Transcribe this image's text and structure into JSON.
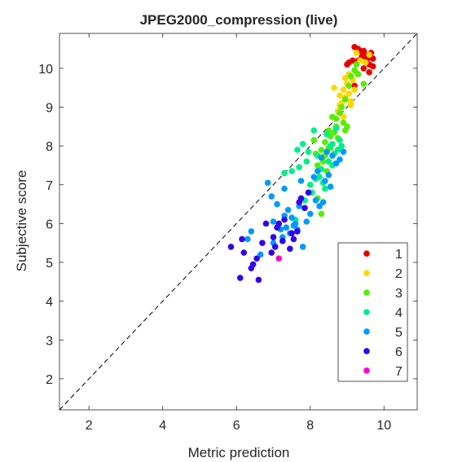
{
  "chart_data": {
    "type": "scatter",
    "title": "JPEG2000_compression (live)",
    "xlabel": "Metric prediction",
    "ylabel": "Subjective score",
    "xlim": [
      1.2,
      10.9
    ],
    "ylim": [
      1.2,
      10.9
    ],
    "xticks": [
      2,
      4,
      6,
      8,
      10
    ],
    "yticks": [
      2,
      3,
      4,
      5,
      6,
      7,
      8,
      9,
      10
    ],
    "reference_line": "y = x (dashed)",
    "grid": false,
    "legend_position": "bottom-right",
    "series": [
      {
        "name": "1",
        "color": "#e60000",
        "points": [
          [
            9.2,
            10.55
          ],
          [
            9.3,
            10.2
          ],
          [
            9.35,
            10.45
          ],
          [
            9.45,
            10.0
          ],
          [
            9.5,
            10.35
          ],
          [
            9.55,
            10.25
          ],
          [
            9.6,
            10.1
          ],
          [
            9.65,
            10.4
          ],
          [
            9.7,
            10.05
          ],
          [
            9.4,
            10.3
          ],
          [
            9.05,
            10.15
          ],
          [
            9.15,
            10.2
          ],
          [
            9.0,
            10.1
          ],
          [
            9.6,
            9.9
          ],
          [
            9.2,
            9.55
          ],
          [
            9.3,
            10.5
          ],
          [
            9.7,
            10.25
          ],
          [
            9.45,
            10.45
          ]
        ]
      },
      {
        "name": "2",
        "color": "#ffd700",
        "points": [
          [
            8.65,
            9.5
          ],
          [
            8.8,
            9.3
          ],
          [
            8.85,
            9.1
          ],
          [
            8.9,
            9.45
          ],
          [
            8.95,
            9.25
          ],
          [
            9.0,
            9.6
          ],
          [
            9.05,
            9.35
          ],
          [
            9.1,
            9.15
          ],
          [
            9.15,
            9.7
          ],
          [
            9.2,
            9.45
          ],
          [
            9.25,
            10.4
          ],
          [
            9.35,
            10.2
          ],
          [
            9.5,
            10.15
          ],
          [
            9.6,
            10.35
          ],
          [
            9.05,
            9.85
          ],
          [
            8.75,
            8.9
          ],
          [
            8.9,
            8.75
          ],
          [
            9.1,
            9.05
          ],
          [
            9.25,
            9.9
          ],
          [
            8.95,
            9.75
          ],
          [
            8.8,
            9.05
          ]
        ]
      },
      {
        "name": "3",
        "color": "#55ee00",
        "points": [
          [
            8.1,
            8.15
          ],
          [
            8.15,
            7.8
          ],
          [
            8.2,
            7.5
          ],
          [
            8.3,
            7.9
          ],
          [
            8.35,
            7.6
          ],
          [
            8.4,
            7.75
          ],
          [
            8.45,
            7.35
          ],
          [
            8.5,
            8.4
          ],
          [
            8.55,
            7.95
          ],
          [
            8.6,
            8.75
          ],
          [
            8.7,
            8.5
          ],
          [
            8.75,
            8.2
          ],
          [
            8.8,
            8.85
          ],
          [
            8.85,
            9.0
          ],
          [
            8.9,
            8.6
          ],
          [
            8.95,
            9.2
          ],
          [
            9.0,
            8.5
          ],
          [
            9.05,
            9.55
          ],
          [
            9.1,
            9.8
          ],
          [
            9.2,
            9.95
          ],
          [
            9.3,
            9.85
          ],
          [
            9.45,
            9.6
          ],
          [
            8.3,
            6.25
          ],
          [
            8.2,
            6.65
          ],
          [
            8.5,
            7.95
          ],
          [
            8.65,
            8.35
          ],
          [
            8.4,
            8.1
          ],
          [
            8.55,
            8.25
          ],
          [
            8.95,
            8.4
          ],
          [
            8.7,
            8.7
          ],
          [
            9.25,
            10.1
          ]
        ]
      },
      {
        "name": "4",
        "color": "#00ee88",
        "points": [
          [
            7.3,
            7.3
          ],
          [
            7.5,
            7.35
          ],
          [
            7.65,
            7.9
          ],
          [
            7.7,
            7.45
          ],
          [
            7.8,
            8.05
          ],
          [
            7.9,
            7.6
          ],
          [
            8.0,
            7.0
          ],
          [
            8.1,
            8.4
          ],
          [
            8.15,
            7.15
          ],
          [
            8.25,
            7.2
          ],
          [
            8.3,
            7.4
          ],
          [
            8.35,
            7.05
          ],
          [
            8.4,
            6.9
          ],
          [
            8.45,
            8.3
          ],
          [
            8.5,
            7.6
          ],
          [
            8.55,
            8.0
          ],
          [
            8.6,
            7.5
          ],
          [
            8.65,
            7.8
          ],
          [
            8.7,
            8.45
          ],
          [
            8.8,
            8.15
          ],
          [
            8.85,
            8.0
          ],
          [
            8.05,
            6.8
          ],
          [
            7.85,
            6.6
          ],
          [
            7.6,
            6.1
          ],
          [
            7.95,
            7.85
          ],
          [
            8.2,
            7.75
          ],
          [
            8.75,
            7.9
          ],
          [
            8.6,
            8.05
          ]
        ]
      },
      {
        "name": "5",
        "color": "#0099ff",
        "points": [
          [
            6.3,
            5.6
          ],
          [
            6.4,
            5.8
          ],
          [
            6.65,
            5.2
          ],
          [
            6.85,
            7.05
          ],
          [
            7.0,
            6.05
          ],
          [
            7.1,
            6.5
          ],
          [
            7.2,
            5.85
          ],
          [
            7.25,
            5.65
          ],
          [
            7.3,
            6.2
          ],
          [
            7.35,
            5.9
          ],
          [
            7.4,
            6.35
          ],
          [
            7.45,
            5.75
          ],
          [
            7.5,
            6.15
          ],
          [
            7.55,
            5.95
          ],
          [
            7.6,
            6.0
          ],
          [
            7.7,
            6.45
          ],
          [
            7.75,
            7.1
          ],
          [
            7.8,
            5.4
          ],
          [
            7.9,
            6.05
          ],
          [
            8.0,
            6.25
          ],
          [
            8.1,
            7.2
          ],
          [
            8.2,
            7.35
          ],
          [
            8.3,
            7.7
          ],
          [
            8.35,
            6.55
          ],
          [
            8.4,
            7.1
          ],
          [
            8.5,
            7.25
          ],
          [
            8.6,
            7.75
          ],
          [
            8.7,
            7.55
          ],
          [
            7.3,
            6.9
          ],
          [
            8.25,
            6.45
          ],
          [
            8.15,
            6.6
          ],
          [
            6.95,
            6.7
          ],
          [
            8.45,
            7.85
          ],
          [
            7.65,
            5.85
          ],
          [
            7.0,
            5.5
          ],
          [
            8.55,
            6.95
          ],
          [
            8.8,
            7.65
          ],
          [
            8.9,
            7.85
          ]
        ]
      },
      {
        "name": "6",
        "color": "#3300ee",
        "points": [
          [
            5.85,
            5.4
          ],
          [
            6.1,
            4.6
          ],
          [
            6.15,
            5.6
          ],
          [
            6.2,
            5.25
          ],
          [
            6.4,
            4.85
          ],
          [
            6.45,
            4.95
          ],
          [
            6.6,
            4.55
          ],
          [
            6.7,
            5.5
          ],
          [
            6.8,
            6.0
          ],
          [
            6.95,
            5.25
          ],
          [
            7.0,
            5.65
          ],
          [
            7.05,
            5.4
          ],
          [
            7.1,
            5.9
          ],
          [
            7.15,
            6.0
          ],
          [
            7.25,
            5.55
          ],
          [
            7.3,
            6.1
          ],
          [
            7.45,
            5.35
          ],
          [
            7.55,
            5.6
          ],
          [
            7.65,
            5.8
          ],
          [
            7.75,
            6.65
          ],
          [
            7.85,
            6.4
          ],
          [
            7.95,
            6.8
          ],
          [
            7.7,
            6.55
          ],
          [
            7.5,
            5.75
          ],
          [
            6.55,
            5.1
          ]
        ]
      },
      {
        "name": "7",
        "color": "#ff00cc",
        "points": [
          [
            7.15,
            5.1
          ]
        ]
      }
    ]
  }
}
